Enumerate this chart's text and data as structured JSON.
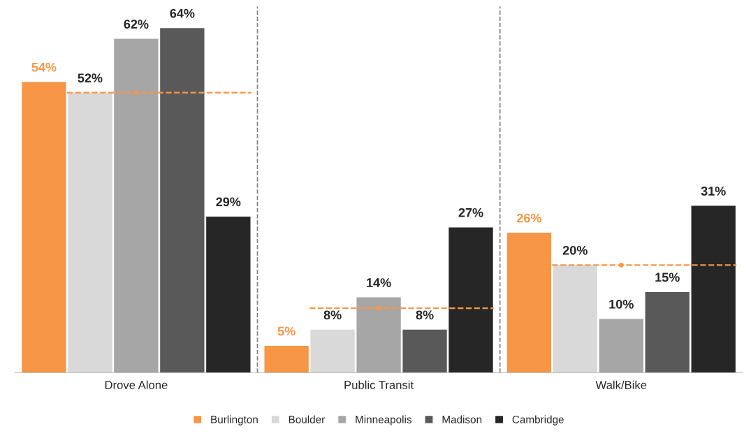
{
  "chart_data": {
    "type": "bar",
    "categories": [
      "Drove Alone",
      "Public Transit",
      "Walk/Bike"
    ],
    "series": [
      {
        "name": "Burlington",
        "color": "#f79646",
        "values": [
          54,
          5,
          26
        ],
        "value_labels": [
          "54%",
          "5%",
          "26%"
        ]
      },
      {
        "name": "Boulder",
        "color": "#d9d9d9",
        "values": [
          52,
          8,
          20
        ],
        "value_labels": [
          "52%",
          "8%",
          "20%"
        ]
      },
      {
        "name": "Minneapolis",
        "color": "#a6a6a6",
        "values": [
          62,
          14,
          10
        ],
        "value_labels": [
          "62%",
          "14%",
          "10%"
        ]
      },
      {
        "name": "Madison",
        "color": "#595959",
        "values": [
          64,
          8,
          15
        ],
        "value_labels": [
          "64%",
          "8%",
          "15%"
        ]
      },
      {
        "name": "Cambridge",
        "color": "#262626",
        "values": [
          29,
          27,
          31
        ],
        "value_labels": [
          "29%",
          "27%",
          "31%"
        ]
      },
      {
        "type": "line",
        "color": "#f79646",
        "line_style": "dashed",
        "marker": "circle",
        "values": [
          52,
          null,
          null
        ]
      },
      {
        "type": "line",
        "color": "#f79646",
        "line_style": "dashed",
        "marker": "circle",
        "values": [
          null,
          12,
          null
        ]
      },
      {
        "type": "line",
        "color": "#f79646",
        "line_style": "dashed",
        "marker": "circle",
        "values": [
          null,
          null,
          20
        ]
      }
    ],
    "ylim": [
      0,
      68
    ],
    "tick_labels": "x",
    "grid": false,
    "legend": "bottom"
  }
}
